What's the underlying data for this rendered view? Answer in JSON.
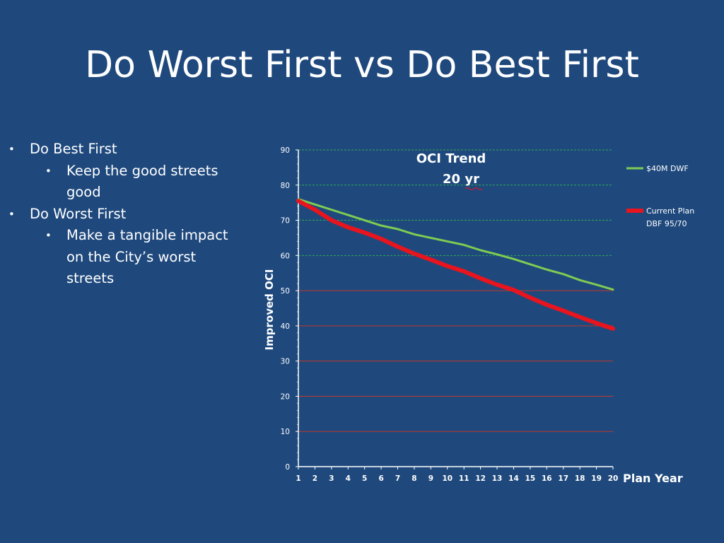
{
  "slide": {
    "title": "Do Worst First vs Do Best First",
    "bullets": [
      {
        "text": "Do Best First",
        "sub": [
          "Keep the good streets good"
        ]
      },
      {
        "text": "Do Worst First",
        "sub": [
          "Make a tangible impact on the City’s worst streets"
        ]
      }
    ],
    "bullet_glyph": "•"
  },
  "chart_data": {
    "type": "line",
    "title": [
      "OCI Trend",
      "20 yr"
    ],
    "xlabel": "Plan Year",
    "ylabel": "Improved OCI",
    "x": [
      1,
      2,
      3,
      4,
      5,
      6,
      7,
      8,
      9,
      10,
      11,
      12,
      13,
      14,
      15,
      16,
      17,
      18,
      19,
      20
    ],
    "ylim": [
      0,
      90
    ],
    "yticks": [
      0,
      10,
      20,
      30,
      40,
      50,
      60,
      70,
      80,
      90
    ],
    "grid": true,
    "grid_colors": {
      "upper": "#2fa84f",
      "lower": "#c0392b",
      "split_at": 50
    },
    "legend_position": "right",
    "series": [
      {
        "name": "$40M DWF",
        "color": "#7fcc52",
        "width": 3,
        "values": [
          76,
          74.5,
          73,
          71.5,
          70,
          68.5,
          67.5,
          66,
          65,
          64,
          63,
          61.5,
          60.3,
          59,
          57.5,
          56,
          54.7,
          53,
          51.7,
          50.3
        ]
      },
      {
        "name": "Current Plan DBF 95/70",
        "legend_lines": [
          "Current Plan",
          "DBF 95/70"
        ],
        "color": "#e8141e",
        "width": 6,
        "values": [
          75.5,
          73,
          70,
          68,
          66.5,
          64.7,
          62.5,
          60.5,
          58.8,
          57,
          55.5,
          53.5,
          51.7,
          50.2,
          48,
          46,
          44.3,
          42.5,
          40.8,
          39.2
        ]
      }
    ]
  }
}
